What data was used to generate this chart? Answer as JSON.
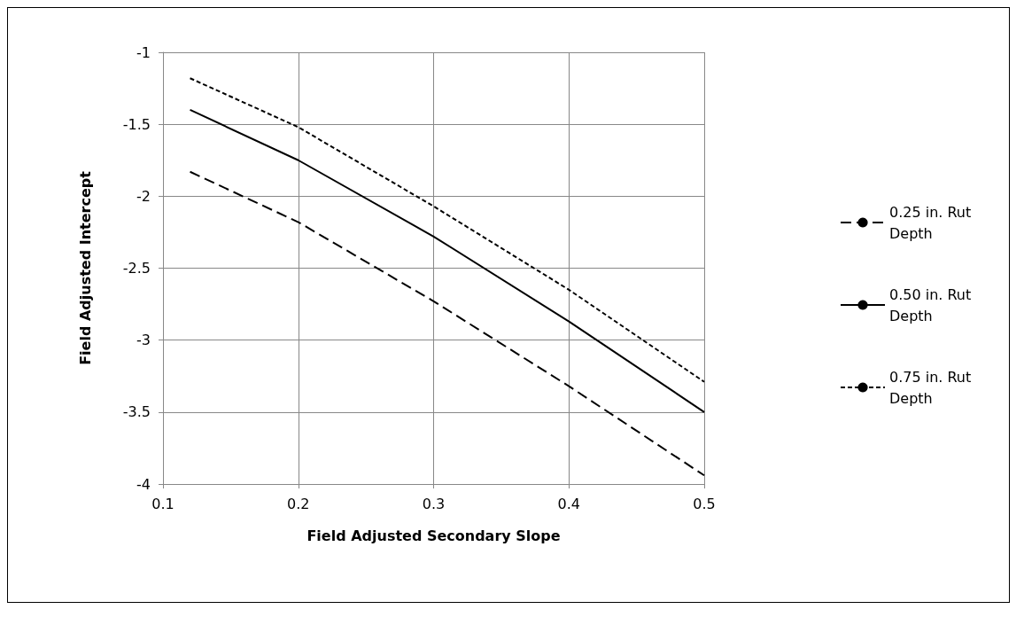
{
  "chart_data": {
    "type": "line",
    "xlabel": "Field Adjusted Secondary Slope",
    "ylabel": "Field Adjusted Intercept",
    "x": [
      0.12,
      0.2,
      0.3,
      0.4,
      0.5
    ],
    "series": [
      {
        "name": "0.25 in. Rut Depth",
        "color": "#000000",
        "line_style": "dashed",
        "values": [
          -1.83,
          -2.18,
          -2.73,
          -3.32,
          -3.94
        ]
      },
      {
        "name": "0.50 in. Rut Depth",
        "color": "#000000",
        "line_style": "solid",
        "values": [
          -1.4,
          -1.75,
          -2.28,
          -2.87,
          -3.5
        ]
      },
      {
        "name": "0.75 in. Rut Depth",
        "color": "#000000",
        "line_style": "dotted",
        "values": [
          -1.18,
          -1.52,
          -2.07,
          -2.65,
          -3.29
        ]
      }
    ],
    "xlim": [
      0.1,
      0.5
    ],
    "xticks": [
      0.1,
      0.2,
      0.3,
      0.4,
      0.5
    ],
    "ylim": [
      -4,
      -1
    ],
    "yticks": [
      -4,
      -3.5,
      -3,
      -2.5,
      -2,
      -1.5,
      -1
    ],
    "grid": true,
    "legend": "right",
    "marker": "none"
  }
}
